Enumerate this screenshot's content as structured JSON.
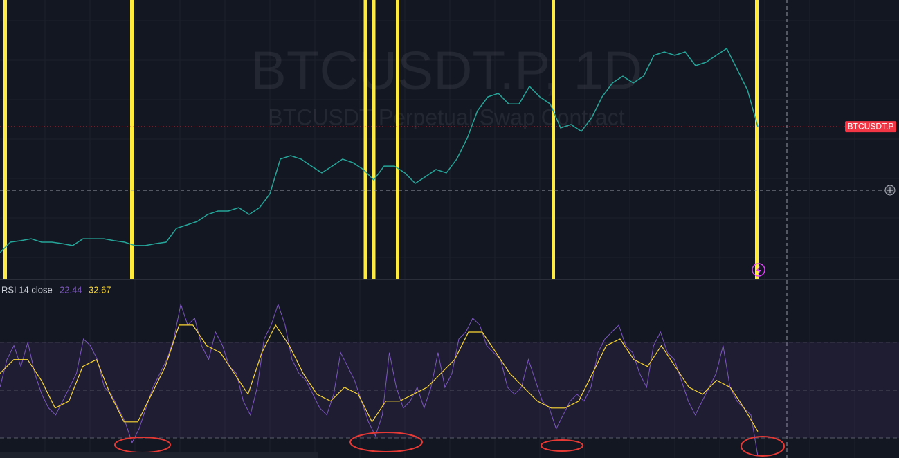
{
  "chart_data": [
    {
      "type": "line",
      "title": "BTCUSDT.P, 1D",
      "subtitle": "BTCUSDT Perpetual Swap Contract",
      "price_label": "BTCUSDT.P",
      "color": "#26a69a",
      "values": [
        21700,
        26000,
        26600,
        27400,
        26000,
        26000,
        25400,
        24600,
        27400,
        27400,
        27400,
        26600,
        26000,
        24600,
        24600,
        25400,
        26000,
        31700,
        33100,
        34500,
        37400,
        38800,
        38800,
        40200,
        37400,
        40200,
        45900,
        60200,
        61600,
        60200,
        57300,
        54500,
        57300,
        60200,
        58700,
        55900,
        51600,
        57300,
        57300,
        54500,
        50200,
        53000,
        55900,
        54500,
        60200,
        68700,
        80100,
        85800,
        87200,
        82900,
        82900,
        90100,
        85800,
        82900,
        73000,
        74400,
        71600,
        77200,
        85800,
        91500,
        94300,
        91500,
        94300,
        102900,
        104300,
        102900,
        104300,
        98600,
        100000,
        102900,
        105700,
        97200,
        88600,
        73500
      ],
      "ylim": [
        10910,
        125650
      ],
      "signals": [
        0.5,
        12.7,
        35.2,
        36,
        38.3,
        53.3,
        72.9
      ],
      "signal_color": "#ffeb3b"
    },
    {
      "type": "line",
      "legend": "RSI 14 close",
      "rsi_value": 22.44,
      "ma_value": 32.67,
      "series": [
        {
          "color": "#7e57c2",
          "values": [
            51.2,
            62.8,
            68.6,
            59.9,
            70,
            57,
            48.3,
            42.5,
            39.6,
            45.4,
            51.2,
            57,
            71.4,
            68.6,
            62.8,
            51.2,
            48.3,
            42.5,
            36.7,
            28,
            33.8,
            42.5,
            51.2,
            57,
            62.8,
            71.4,
            85.9,
            77.2,
            80.1,
            68.6,
            62.8,
            74.3,
            68.6,
            59.9,
            57,
            45.4,
            39.6,
            51.2,
            71.4,
            77.2,
            85.9,
            77.2,
            62.8,
            57,
            54.1,
            48.3,
            42.5,
            39.6,
            48.3,
            65.7,
            59.9,
            54.1,
            45.4,
            36.7,
            30.9,
            39.6,
            65.7,
            51.2,
            42.5,
            45.4,
            51.2,
            42.5,
            51.2,
            65.7,
            51.2,
            57,
            71.4,
            74.3,
            80.1,
            77.2,
            68.6,
            65.7,
            62.8,
            51.2,
            48.3,
            51.2,
            62.8,
            54.1,
            45.4,
            42.5,
            33.8,
            39.6,
            45.4,
            48.3,
            45.4,
            51.2,
            65.7,
            71.4,
            74.3,
            77.2,
            68.6,
            65.7,
            57,
            51.2,
            68.6,
            74.3,
            65.7,
            62.8,
            54.1,
            45.4,
            39.6,
            45.4,
            51.2,
            57,
            68.6,
            51.2,
            45.4,
            42.5,
            39.6,
            22.4
          ]
        },
        {
          "color": "#fdd835",
          "values": [
            57,
            62.8,
            62.8,
            54.1,
            42.5,
            45.4,
            59.9,
            62.8,
            48.3,
            36.7,
            36.7,
            48.3,
            59.9,
            77.2,
            77.2,
            68.6,
            65.7,
            57,
            48.3,
            65.7,
            77.2,
            68.6,
            57,
            48.3,
            45.4,
            51.2,
            48.3,
            36.7,
            45.4,
            45.4,
            48.3,
            51.2,
            57,
            62.8,
            74.3,
            74.3,
            65.7,
            57,
            51.2,
            45.4,
            42.5,
            42.5,
            45.4,
            57,
            68.6,
            71.4,
            62.8,
            59.9,
            68.6,
            59.9,
            51.2,
            48.3,
            54.1,
            51.2,
            42.5,
            32.7
          ]
        }
      ],
      "ylim": [
        21.6,
        96
      ],
      "bands": [
        70,
        50,
        30
      ]
    }
  ]
}
